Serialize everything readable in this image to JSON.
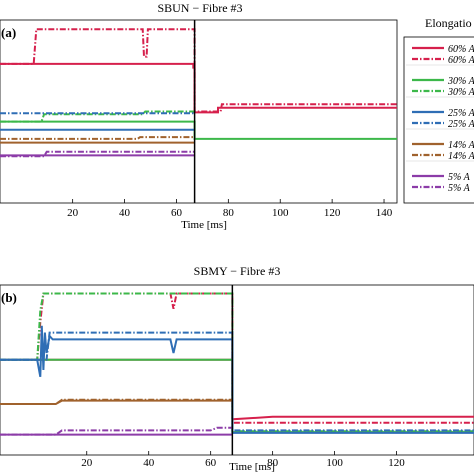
{
  "chart_data": [
    {
      "type": "line",
      "title": "SBUN − Fibre #3",
      "panel_label": "(a)",
      "xlabel": "Time [ms]",
      "xlim": [
        -8,
        145
      ],
      "ylim": [
        0,
        10
      ],
      "xticks": [
        20,
        40,
        60,
        80,
        100,
        120,
        140
      ],
      "divider_x": 67,
      "series": [
        {
          "name": "60% A",
          "color": "#d6204c",
          "style": "solid",
          "x": [
            -8,
            66.5,
            66.5,
            67,
            67,
            76,
            76,
            145
          ],
          "y": [
            7.6,
            7.6,
            7.4,
            7.4,
            4.95,
            4.95,
            5.2,
            5.2
          ]
        },
        {
          "name": "60% A",
          "color": "#d6204c",
          "style": "dashdot",
          "x": [
            -8,
            5,
            6,
            47,
            47.5,
            48.5,
            49,
            67,
            67,
            77,
            77.5,
            145
          ],
          "y": [
            7.6,
            7.6,
            9.5,
            9.5,
            8.0,
            8.0,
            9.5,
            9.5,
            5.0,
            5.0,
            5.4,
            5.4
          ]
        },
        {
          "name": "30% A",
          "color": "#3cb84a",
          "style": "solid",
          "x": [
            -8,
            67,
            67,
            145
          ],
          "y": [
            4.45,
            4.45,
            3.5,
            3.5
          ]
        },
        {
          "name": "30% A",
          "color": "#3cb84a",
          "style": "dashdot",
          "x": [
            -8,
            8,
            9,
            47,
            48,
            67
          ],
          "y": [
            4.45,
            4.45,
            4.85,
            4.85,
            5.0,
            5.0
          ]
        },
        {
          "name": "25% A",
          "color": "#2f6eb5",
          "style": "solid",
          "x": [
            -8,
            67
          ],
          "y": [
            4.0,
            4.0
          ]
        },
        {
          "name": "25% A",
          "color": "#2f6eb5",
          "style": "dashdot",
          "x": [
            -8,
            67
          ],
          "y": [
            4.9,
            4.9
          ]
        },
        {
          "name": "14% A",
          "color": "#a0622d",
          "style": "solid",
          "x": [
            -8,
            67
          ],
          "y": [
            3.3,
            3.3
          ]
        },
        {
          "name": "14% A",
          "color": "#a0622d",
          "style": "dashdot",
          "x": [
            -8,
            45,
            46,
            67
          ],
          "y": [
            3.5,
            3.5,
            3.6,
            3.6
          ]
        },
        {
          "name": "5% A",
          "color": "#8c3ca8",
          "style": "solid",
          "x": [
            -8,
            67
          ],
          "y": [
            2.6,
            2.6
          ]
        },
        {
          "name": "5% A",
          "color": "#8c3ca8",
          "style": "dashdot",
          "x": [
            -8,
            9,
            10,
            67
          ],
          "y": [
            2.55,
            2.55,
            2.8,
            2.8
          ]
        }
      ]
    },
    {
      "type": "line",
      "title": "SBMY − Fibre #3",
      "panel_label": "(b)",
      "xlabel": "Time [ms]",
      "xlim": [
        -8,
        145
      ],
      "ylim": [
        0,
        10
      ],
      "xticks": [
        20,
        40,
        60,
        80,
        100,
        120
      ],
      "divider_x": 67,
      "series": [
        {
          "name": "60% A",
          "color": "#d6204c",
          "style": "solid",
          "x": [
            -8,
            67,
            67,
            80,
            145
          ],
          "y": [
            5.6,
            5.6,
            2.1,
            2.25,
            2.25
          ]
        },
        {
          "name": "60% A",
          "color": "#d6204c",
          "style": "dashdot",
          "x": [
            -8,
            4,
            5,
            6,
            7,
            8,
            47,
            48,
            49,
            50,
            67,
            67,
            145
          ],
          "y": [
            5.6,
            5.6,
            7.8,
            9.5,
            9.5,
            9.5,
            9.5,
            8.6,
            9.5,
            9.5,
            9.5,
            1.9,
            1.9
          ]
        },
        {
          "name": "30% A",
          "color": "#3cb84a",
          "style": "solid",
          "x": [
            -8,
            67,
            67,
            145
          ],
          "y": [
            5.6,
            5.6,
            1.35,
            1.35
          ]
        },
        {
          "name": "30% A",
          "color": "#3cb84a",
          "style": "dashdot",
          "x": [
            -8,
            4,
            5,
            6,
            67,
            67,
            145
          ],
          "y": [
            5.6,
            5.6,
            8.5,
            9.5,
            9.5,
            1.4,
            1.4
          ]
        },
        {
          "name": "25% A",
          "color": "#2f6eb5",
          "style": "solid",
          "x": [
            -8,
            4,
            5,
            5.5,
            6,
            6.5,
            7,
            8,
            9,
            47,
            48,
            49,
            67,
            67,
            145
          ],
          "y": [
            5.6,
            5.6,
            4.6,
            7.6,
            5.0,
            7.2,
            6.0,
            7.0,
            6.8,
            6.8,
            6.0,
            6.8,
            6.8,
            1.3,
            1.3
          ]
        },
        {
          "name": "25% A",
          "color": "#2f6eb5",
          "style": "dashdot",
          "x": [
            -8,
            7,
            8,
            67,
            67,
            145
          ],
          "y": [
            5.6,
            5.6,
            7.2,
            7.2,
            1.45,
            1.45
          ]
        },
        {
          "name": "14% A",
          "color": "#a0622d",
          "style": "solid",
          "x": [
            -8,
            10,
            12,
            67
          ],
          "y": [
            3.0,
            3.0,
            3.2,
            3.2
          ]
        },
        {
          "name": "14% A",
          "color": "#a0622d",
          "style": "dashdot",
          "x": [
            -8,
            10,
            12,
            67
          ],
          "y": [
            3.0,
            3.0,
            3.25,
            3.25
          ]
        },
        {
          "name": "5% A",
          "color": "#8c3ca8",
          "style": "solid",
          "x": [
            -8,
            67
          ],
          "y": [
            1.2,
            1.2
          ]
        },
        {
          "name": "5% A",
          "color": "#8c3ca8",
          "style": "dashdot",
          "x": [
            -8,
            10,
            12,
            60,
            62,
            67
          ],
          "y": [
            1.2,
            1.2,
            1.45,
            1.45,
            1.6,
            1.6
          ]
        }
      ]
    }
  ],
  "legend": {
    "title": "Elongatio",
    "entries": [
      {
        "label": "60% A",
        "color": "#d6204c",
        "style": "solid"
      },
      {
        "label": "60% A",
        "color": "#d6204c",
        "style": "dashdot"
      },
      {
        "label": "30% A",
        "color": "#3cb84a",
        "style": "solid"
      },
      {
        "label": "30% A",
        "color": "#3cb84a",
        "style": "dashdot"
      },
      {
        "label": "25% A",
        "color": "#2f6eb5",
        "style": "solid"
      },
      {
        "label": "25% A",
        "color": "#2f6eb5",
        "style": "dashdot"
      },
      {
        "label": "14% A",
        "color": "#a0622d",
        "style": "solid"
      },
      {
        "label": "14% A",
        "color": "#a0622d",
        "style": "dashdot"
      },
      {
        "label": "5% A",
        "color": "#8c3ca8",
        "style": "solid"
      },
      {
        "label": "5% A",
        "color": "#8c3ca8",
        "style": "dashdot"
      }
    ]
  }
}
